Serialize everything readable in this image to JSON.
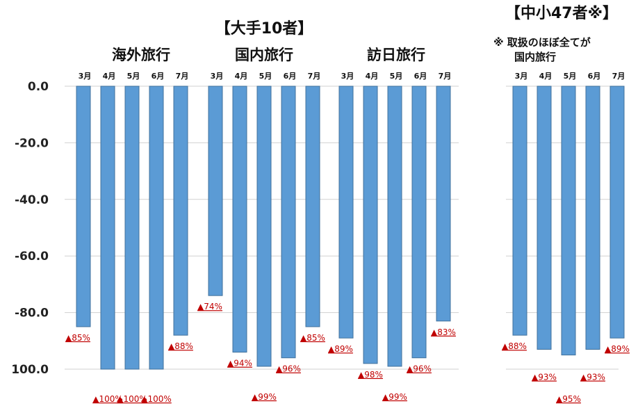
{
  "chart_data": {
    "type": "bar",
    "title_left": "【大手10者】",
    "title_right": "【中小47者※】",
    "note": [
      "※ 取扱のほぼ全てが",
      "国内旅行"
    ],
    "yticks": [
      "0.0",
      "-20.0",
      "-40.0",
      "-60.0",
      "-80.0",
      "100.0"
    ],
    "ylim": [
      -100,
      0
    ],
    "grid": true,
    "groups": [
      {
        "name": "海外旅行",
        "categories": [
          "3月",
          "4月",
          "5月",
          "6月",
          "7月"
        ],
        "values": [
          -85,
          -100,
          -100,
          -100,
          -88
        ],
        "labels": [
          "▲85%",
          "▲100%",
          "▲100%",
          "▲100%",
          "▲88%"
        ]
      },
      {
        "name": "国内旅行",
        "categories": [
          "3月",
          "4月",
          "5月",
          "6月",
          "7月"
        ],
        "values": [
          -74,
          -94,
          -99,
          -96,
          -85
        ],
        "labels": [
          "▲74%",
          "▲94%",
          "▲99%",
          "▲96%",
          "▲85%"
        ]
      },
      {
        "name": "訪日旅行",
        "categories": [
          "3月",
          "4月",
          "5月",
          "6月",
          "7月"
        ],
        "values": [
          -89,
          -98,
          -99,
          -96,
          -83
        ],
        "labels": [
          "▲89%",
          "▲98%",
          "▲99%",
          "▲96%",
          "▲83%"
        ]
      },
      {
        "name": "",
        "categories": [
          "3月",
          "4月",
          "5月",
          "6月",
          "7月"
        ],
        "values": [
          -88,
          -93,
          -95,
          -93,
          -89
        ],
        "labels": [
          "▲88%",
          "▲93%",
          "▲95%",
          "▲93%",
          "▲89%"
        ]
      }
    ],
    "colors": {
      "bar": "#5b9bd5",
      "label": "#c00000"
    }
  }
}
